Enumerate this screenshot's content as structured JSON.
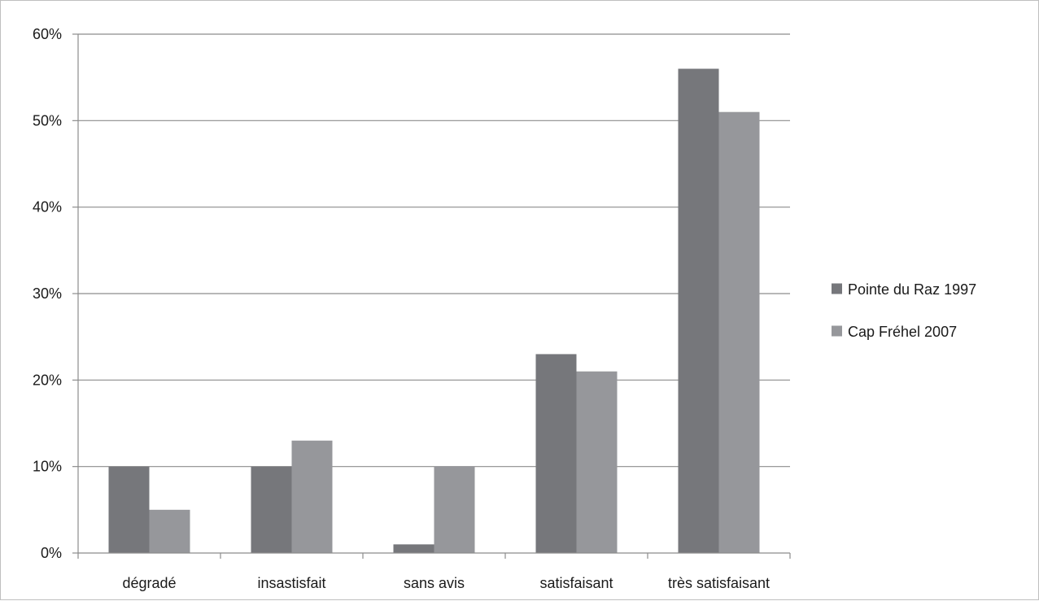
{
  "chart_data": {
    "type": "bar",
    "categories": [
      "dégradé",
      "insastisfait",
      "sans avis",
      "satisfaisant",
      "très satisfaisant"
    ],
    "series": [
      {
        "name": "Pointe du Raz 1997",
        "values": [
          10,
          10,
          1,
          23,
          56
        ],
        "color": "#76777b"
      },
      {
        "name": "Cap Fréhel 2007",
        "values": [
          5,
          13,
          10,
          21,
          51
        ],
        "color": "#96979b"
      }
    ],
    "y_ticks": [
      "0%",
      "10%",
      "20%",
      "30%",
      "40%",
      "50%",
      "60%"
    ],
    "ylim": [
      0,
      60
    ],
    "y_unit": "%",
    "grid": true,
    "legend_position": "right",
    "gridline_color": "#8c8c8c",
    "title": "",
    "xlabel": "",
    "ylabel": ""
  }
}
